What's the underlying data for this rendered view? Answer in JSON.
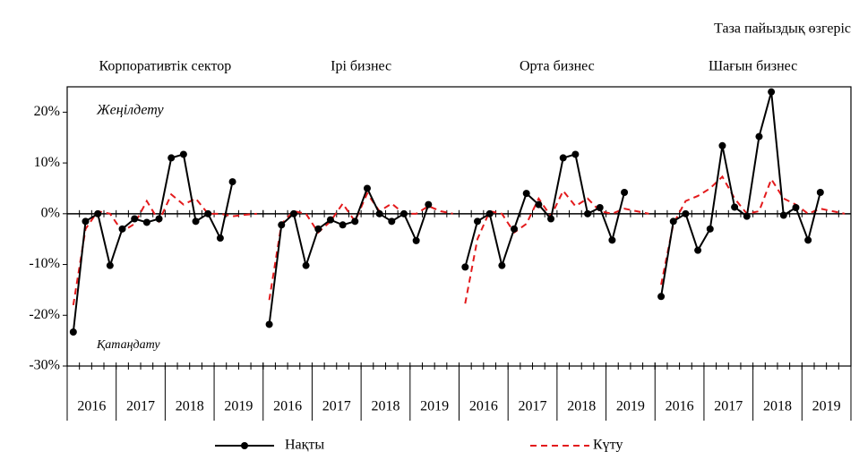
{
  "chart_data": {
    "type": "line",
    "title": "Таза пайыздық өзгеріс",
    "annotations": [
      "Жеңілдету",
      "Қатаңдату"
    ],
    "panels": [
      "Корпоративтік сектор",
      "Ірі бизнес",
      "Орта бизнес",
      "Шағын бизнес"
    ],
    "years": [
      "2016",
      "2017",
      "2018",
      "2019"
    ],
    "ylim": [
      -30,
      25
    ],
    "yticks": [
      {
        "value": -30,
        "label": "-30%"
      },
      {
        "value": -20,
        "label": "-20%"
      },
      {
        "value": -10,
        "label": "-10%"
      },
      {
        "value": 0,
        "label": "0%"
      },
      {
        "value": 10,
        "label": "10%"
      },
      {
        "value": 20,
        "label": "20%"
      }
    ],
    "series": [
      {
        "name": "Нақты",
        "color": "#000000",
        "values": [
          [
            -23.3,
            -1.5,
            0,
            -10.2,
            -3,
            -1,
            -1.7,
            -1,
            11,
            11.7,
            -1.5,
            0,
            -4.8,
            6.3,
            null,
            null
          ],
          [
            -21.8,
            -2.2,
            0,
            -10.2,
            -3,
            -1.2,
            -2.2,
            -1.5,
            5,
            0,
            -1.5,
            0,
            -5.3,
            1.8,
            null,
            null
          ],
          [
            -10.5,
            -1.5,
            0,
            -10.2,
            -3,
            4,
            1.8,
            -1,
            11,
            11.7,
            0,
            1.2,
            -5.2,
            4.2,
            null,
            null
          ],
          [
            -16.3,
            -1.5,
            0,
            -7.2,
            -3,
            13.4,
            1.3,
            -0.5,
            15.2,
            24,
            -0.3,
            1.2,
            -5.2,
            4.2,
            null,
            null
          ]
        ]
      },
      {
        "name": "Күту",
        "color": "#e31a1c",
        "values": [
          [
            -18,
            -3,
            0.5,
            0,
            -3.5,
            -2,
            2.5,
            -1.5,
            3.8,
            1.8,
            3,
            0,
            0,
            -0.5,
            -0.2,
            0
          ],
          [
            -17,
            -2,
            0.5,
            0,
            -3.7,
            -1.5,
            2,
            -1.5,
            4,
            0.5,
            2,
            0,
            0,
            1.5,
            0.5,
            0
          ],
          [
            -17.7,
            -5,
            0.5,
            0,
            -3.7,
            -2,
            3,
            -0.5,
            4.5,
            1.5,
            3,
            0.5,
            0,
            1,
            0.5,
            0
          ],
          [
            -14,
            -2,
            2.5,
            3.5,
            5,
            7.3,
            3,
            0,
            0.5,
            6.8,
            3,
            1.8,
            0,
            1,
            0.5,
            0
          ]
        ]
      }
    ]
  }
}
